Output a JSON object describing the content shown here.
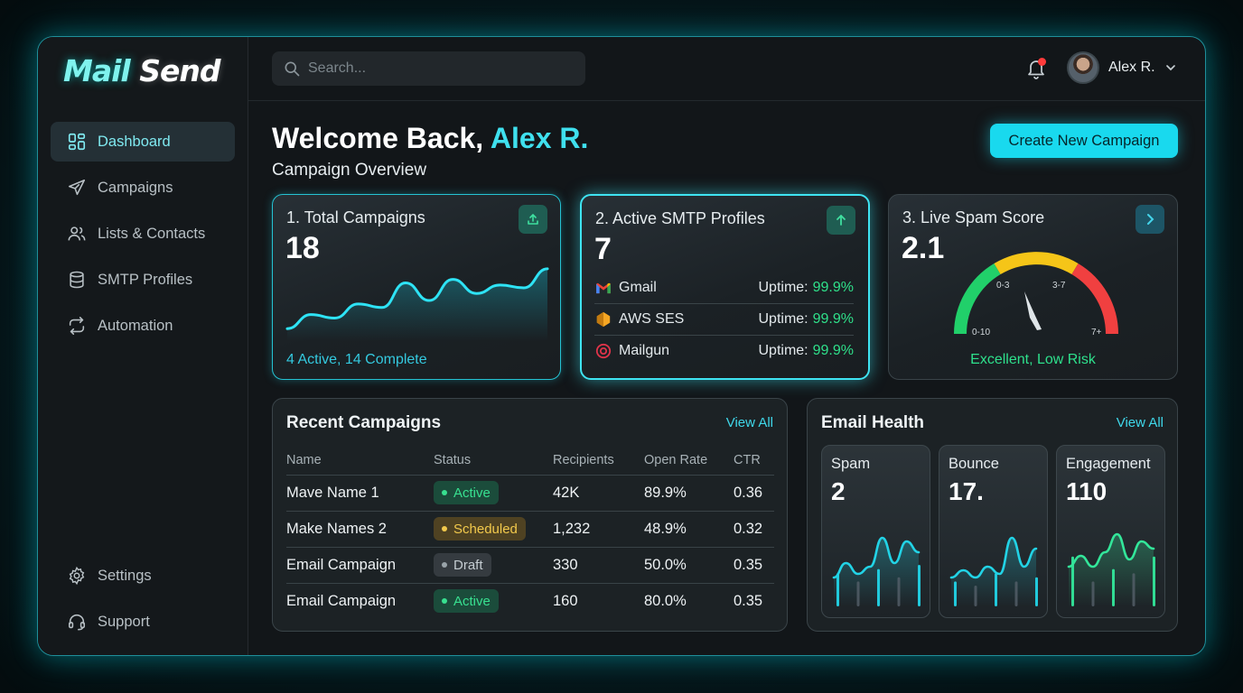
{
  "app": {
    "logo_part1": "Mail",
    "logo_part2": "Send"
  },
  "sidebar": {
    "items": [
      {
        "label": "Dashboard",
        "icon": "grid-icon",
        "active": true
      },
      {
        "label": "Campaigns",
        "icon": "send-icon"
      },
      {
        "label": "Lists & Contacts",
        "icon": "users-icon"
      },
      {
        "label": "SMTP Profiles",
        "icon": "database-icon"
      },
      {
        "label": "Automation",
        "icon": "repeat-icon"
      }
    ],
    "bottom_items": [
      {
        "label": "Settings",
        "icon": "gear-icon"
      },
      {
        "label": "Support",
        "icon": "headset-icon"
      }
    ]
  },
  "header": {
    "search_placeholder": "Search...",
    "user_name": "Alex R.",
    "notification_dot": true
  },
  "main": {
    "welcome_prefix": "Welcome Back, ",
    "welcome_name": "Alex R.",
    "subtitle": "Campaign Overview",
    "create_button": "Create New Campaign"
  },
  "cards": {
    "total": {
      "title": "1. Total Campaigns",
      "value": "18",
      "footer": "4 Active, 14 Complete",
      "trend": [
        0.1,
        0.3,
        0.25,
        0.45,
        0.4,
        0.75,
        0.5,
        0.8,
        0.6,
        0.72,
        0.68,
        0.95
      ]
    },
    "smtp": {
      "title": "2. Active SMTP Profiles",
      "value": "7",
      "uptime_label": "Uptime:",
      "profiles": [
        {
          "name": "Gmail",
          "uptime": "99.9%",
          "icon": "gmail-icon"
        },
        {
          "name": "AWS SES",
          "uptime": "99.9%",
          "icon": "aws-icon"
        },
        {
          "name": "Mailgun",
          "uptime": "99.9%",
          "icon": "mailgun-icon"
        }
      ]
    },
    "spam": {
      "title": "3. Live Spam Score",
      "value": "2.1",
      "gauge_labels": [
        "0-10",
        "0-3",
        "3-7",
        "7+"
      ],
      "gauge_colors": [
        "#21d06a",
        "#f5c518",
        "#f04040"
      ],
      "footer": "Excellent, Low Risk"
    }
  },
  "recent": {
    "title": "Recent Campaigns",
    "view_all": "View All",
    "columns": [
      "Name",
      "Status",
      "Recipients",
      "Open Rate",
      "CTR"
    ],
    "rows": [
      {
        "name": "Mave Name 1",
        "status": "Active",
        "status_type": "active",
        "recipients": "42K",
        "open_rate": "89.9%",
        "ctr": "0.36"
      },
      {
        "name": "Make Names 2",
        "status": "Scheduled",
        "status_type": "scheduled",
        "recipients": "1,232",
        "open_rate": "48.9%",
        "ctr": "0.32"
      },
      {
        "name": "Email Campaign",
        "status": "Draft",
        "status_type": "draft",
        "recipients": "330",
        "open_rate": "50.0%",
        "ctr": "0.35"
      },
      {
        "name": "Email Campaign",
        "status": "Active",
        "status_type": "active",
        "recipients": "160",
        "open_rate": "80.0%",
        "ctr": "0.35"
      }
    ]
  },
  "health": {
    "title": "Email Health",
    "view_all": "View All",
    "metrics": [
      {
        "label": "Spam",
        "value": "2",
        "color": "#22d3e6",
        "line": [
          0.35,
          0.55,
          0.4,
          0.5,
          0.9,
          0.55,
          0.85,
          0.7
        ],
        "bars": [
          0.4,
          0.3,
          0.45,
          0.35,
          0.5
        ]
      },
      {
        "label": "Bounce",
        "value": "17.",
        "color": "#22d3e6",
        "line": [
          0.35,
          0.45,
          0.35,
          0.5,
          0.4,
          0.9,
          0.5,
          0.75
        ],
        "bars": [
          0.3,
          0.25,
          0.4,
          0.3,
          0.35
        ]
      },
      {
        "label": "Engagement",
        "value": "110",
        "color": "#33e69a",
        "line": [
          0.5,
          0.65,
          0.5,
          0.7,
          0.95,
          0.6,
          0.85,
          0.75
        ],
        "bars": [
          0.6,
          0.3,
          0.45,
          0.4,
          0.6
        ]
      }
    ]
  }
}
